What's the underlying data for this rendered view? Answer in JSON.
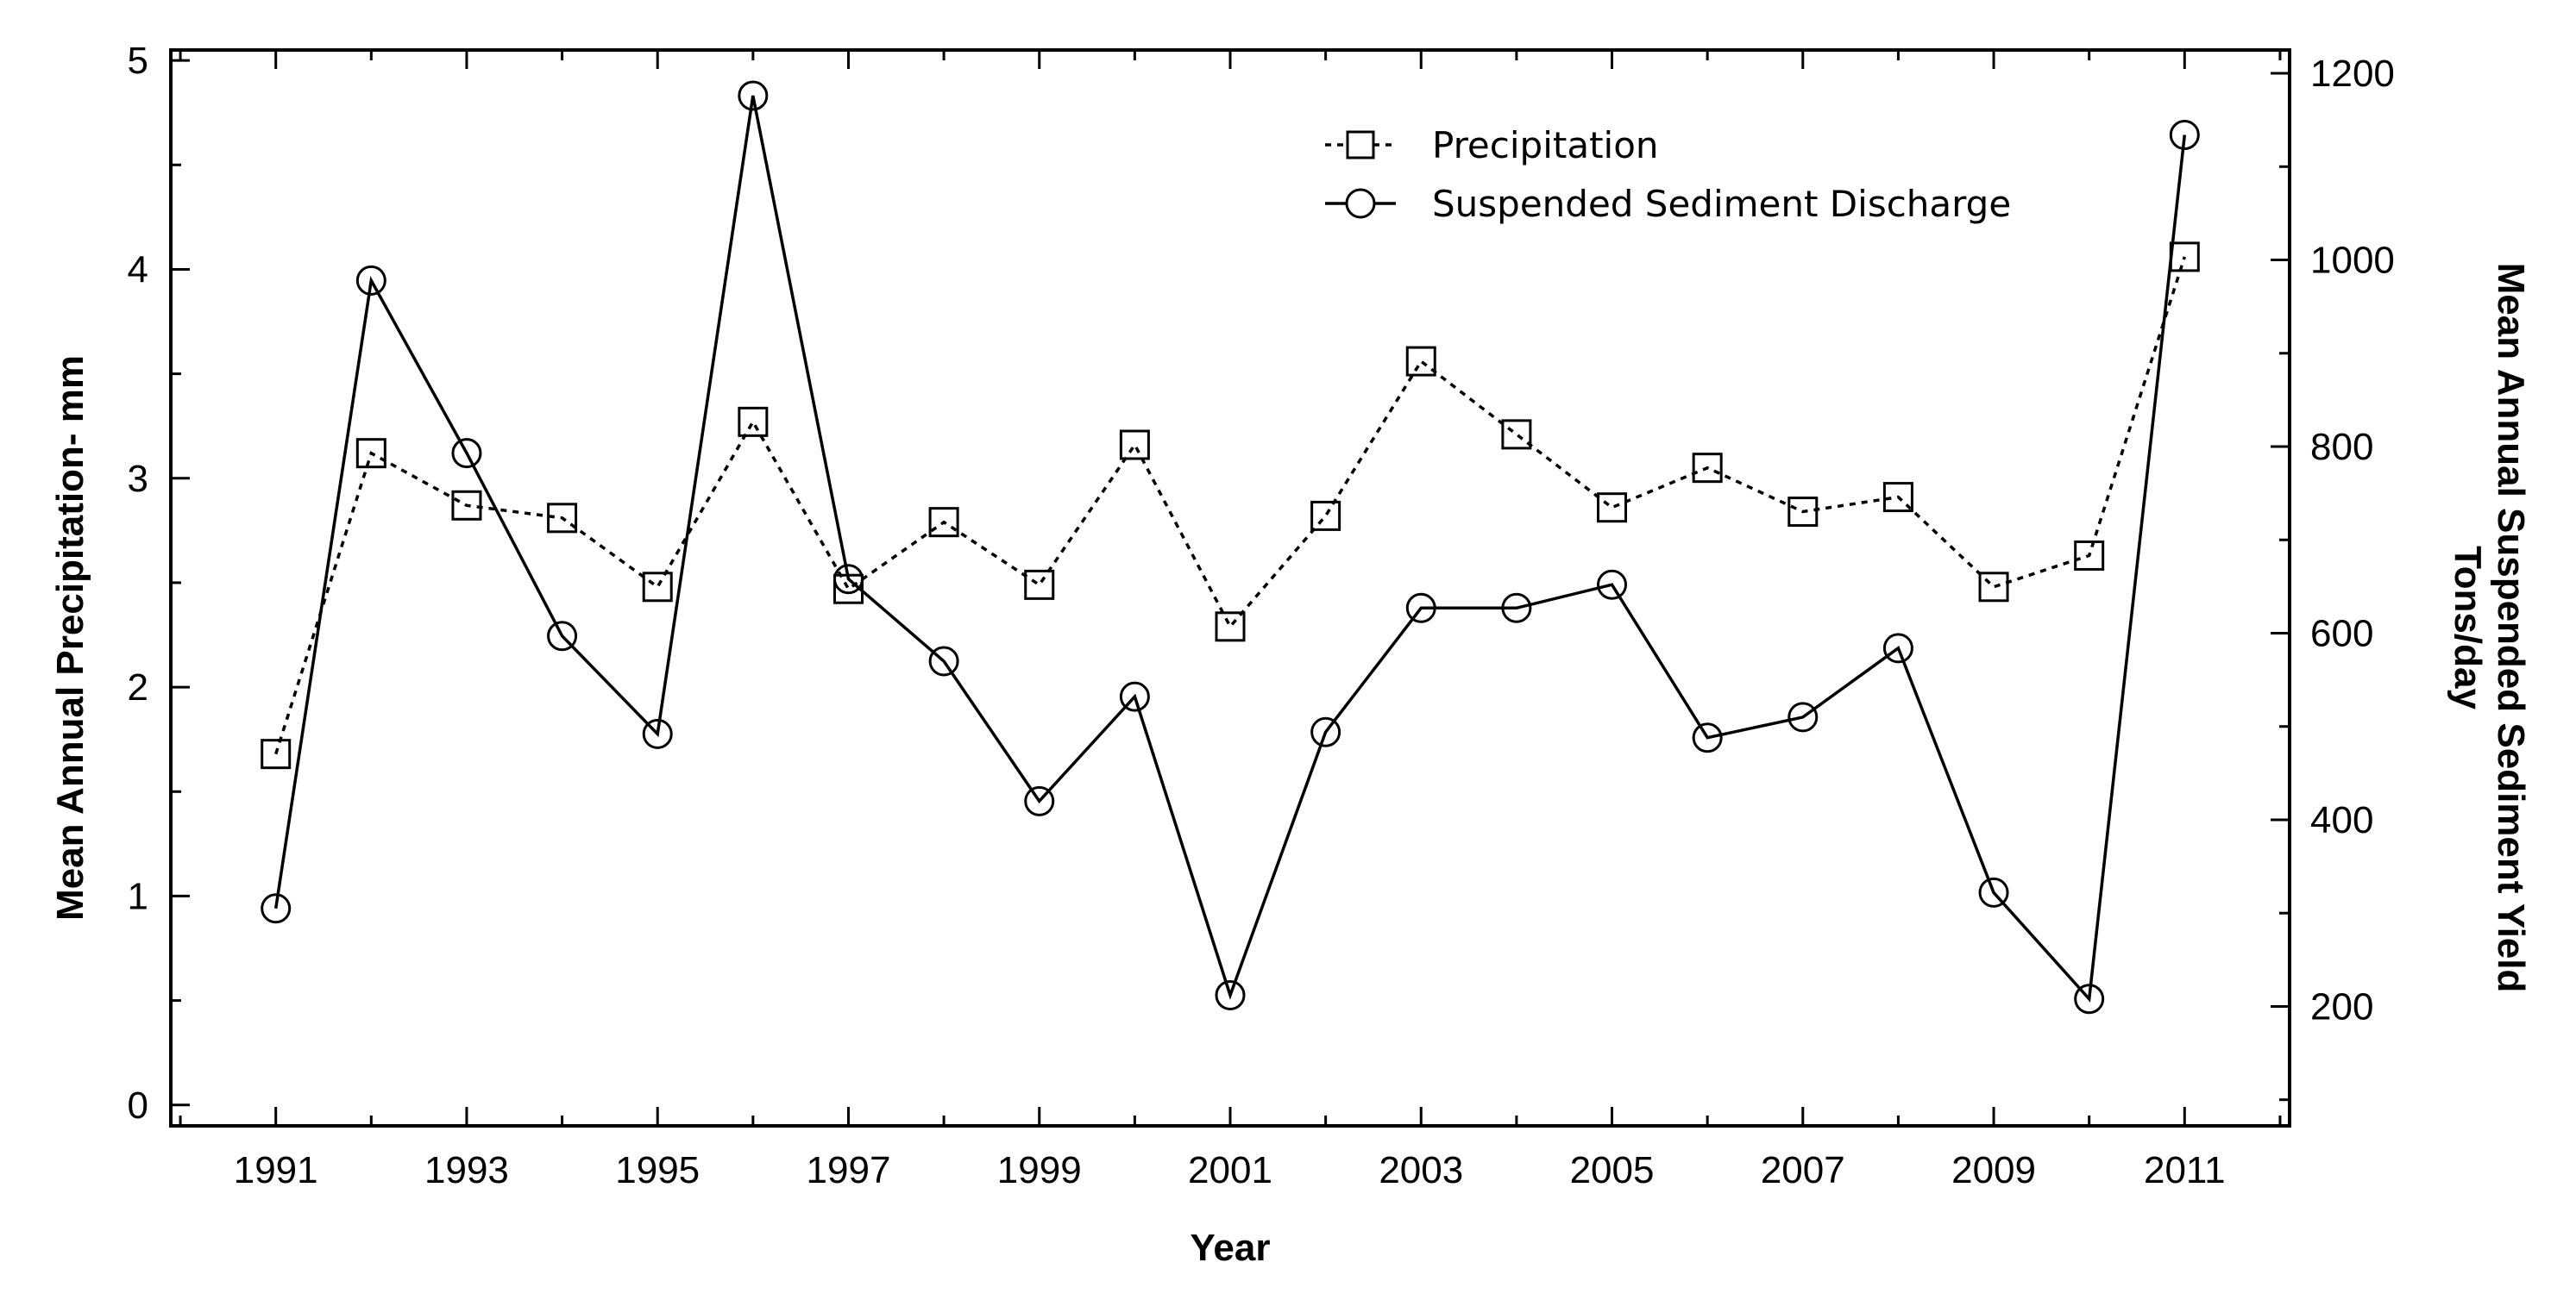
{
  "chart_data": {
    "type": "line",
    "title": "",
    "xlabel": "Year",
    "ylabel_left": "Mean Annual Precipitation- mm",
    "ylabel_right_line1": "Mean Annual Suspended Sediment Yield",
    "ylabel_right_line2": "Tons/day",
    "x": [
      1991,
      1992,
      1993,
      1994,
      1995,
      1996,
      1997,
      1998,
      1999,
      2000,
      2001,
      2002,
      2003,
      2004,
      2005,
      2006,
      2007,
      2008,
      2009,
      2010,
      2011
    ],
    "xlim": [
      1989.9,
      2012.1
    ],
    "x_ticks": [
      1991,
      1993,
      1995,
      1997,
      1999,
      2001,
      2003,
      2005,
      2007,
      2009,
      2011
    ],
    "ylim_left": [
      -0.1,
      5.05
    ],
    "y_ticks_left": [
      0,
      1,
      2,
      3,
      4,
      5
    ],
    "ylim_right": [
      72,
      1225
    ],
    "y_ticks_right": [
      200,
      400,
      600,
      800,
      1000,
      1200
    ],
    "grid": false,
    "legend_position": "top-right",
    "series": [
      {
        "name": "Precipitation",
        "axis": "left",
        "line_style": "dotted",
        "marker": "square",
        "values": [
          1.68,
          3.12,
          2.87,
          2.81,
          2.48,
          3.27,
          2.47,
          2.79,
          2.49,
          3.16,
          2.29,
          2.82,
          3.56,
          3.21,
          2.86,
          3.05,
          2.84,
          2.91,
          2.48,
          2.63,
          4.06
        ]
      },
      {
        "name": "Suspended Sediment Discharge",
        "axis": "right",
        "line_style": "solid",
        "marker": "circle",
        "values": [
          305,
          978,
          793,
          597,
          492,
          1176,
          658,
          570,
          420,
          532,
          212,
          494,
          627,
          627,
          652,
          488,
          510,
          584,
          322,
          208,
          1134
        ]
      }
    ]
  }
}
